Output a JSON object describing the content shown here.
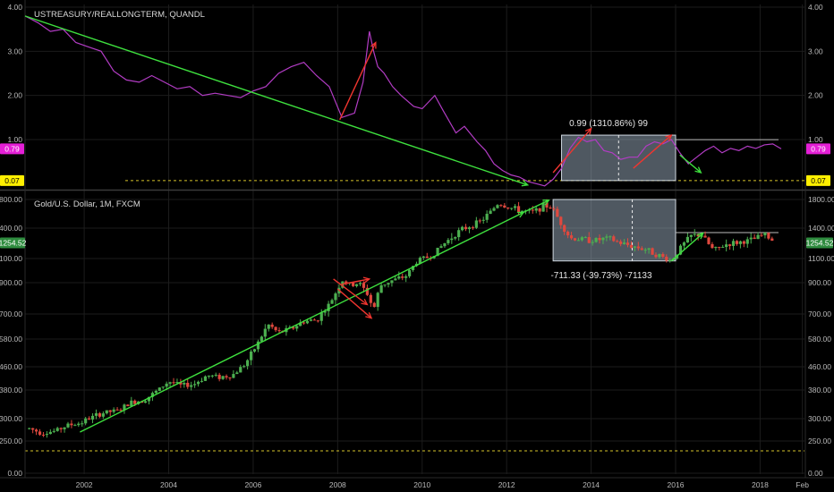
{
  "colors": {
    "background": "#000000",
    "grid": "#1c1c1c",
    "axis_text": "#b8b8b8",
    "treasury_line": "#b23cc4",
    "candle_up": "#4caf50",
    "candle_down": "#e0483e",
    "trend_green": "#3ee03e",
    "trend_red": "#f0352f",
    "dashed_yellow": "#d6c42a",
    "range_box": "#b0c4d8",
    "badge_magenta": "#e41fd6",
    "badge_yellow": "#ffef00",
    "badge_green": "#2e8b3e"
  },
  "chart_data": [
    {
      "type": "line",
      "title": "USTREASURY/REALLONGTERM, QUANDL",
      "ylim": [
        -0.05,
        4.15
      ],
      "y_ticks": [
        "4.00",
        "3.00",
        "2.00",
        "1.00"
      ],
      "last_value_badge": "0.79",
      "hline_badge": "0.07",
      "hline_value": 0.07,
      "xlim": [
        2000.6,
        2019.05
      ],
      "series": [
        {
          "x": [
            2000.6,
            2000.9,
            2001.2,
            2001.5,
            2001.8,
            2002.1,
            2002.4,
            2002.7,
            2003.0,
            2003.3,
            2003.6,
            2003.9,
            2004.2,
            2004.5,
            2004.8,
            2005.1,
            2005.4,
            2005.7,
            2006.0,
            2006.3,
            2006.6,
            2006.9,
            2007.2,
            2007.5,
            2007.8,
            2008.1,
            2008.4,
            2008.6,
            2008.75,
            2008.85,
            2008.95,
            2009.1,
            2009.3,
            2009.5,
            2009.8,
            2010.0,
            2010.3,
            2010.5,
            2010.8,
            2011.0,
            2011.3,
            2011.5,
            2011.7,
            2011.9,
            2012.1,
            2012.3,
            2012.5,
            2012.7,
            2012.9,
            2013.1,
            2013.3,
            2013.5,
            2013.7,
            2013.9,
            2014.1,
            2014.3,
            2014.5,
            2014.7,
            2014.9,
            2015.1,
            2015.3,
            2015.5,
            2015.7,
            2015.9,
            2016.1,
            2016.3,
            2016.5,
            2016.7,
            2016.9,
            2017.1,
            2017.3,
            2017.5,
            2017.7,
            2017.9,
            2018.1,
            2018.3,
            2018.5
          ],
          "values": [
            3.8,
            3.65,
            3.45,
            3.5,
            3.2,
            3.1,
            3.0,
            2.55,
            2.35,
            2.3,
            2.45,
            2.3,
            2.15,
            2.2,
            2.0,
            2.05,
            2.0,
            1.95,
            2.1,
            2.2,
            2.5,
            2.65,
            2.75,
            2.45,
            2.2,
            1.5,
            1.6,
            2.3,
            3.45,
            3.0,
            2.65,
            2.5,
            2.2,
            2.0,
            1.75,
            1.7,
            2.0,
            1.65,
            1.15,
            1.3,
            0.95,
            0.75,
            0.45,
            0.3,
            0.2,
            0.15,
            0.05,
            0.0,
            -0.05,
            0.1,
            0.35,
            0.8,
            1.05,
            0.95,
            1.0,
            0.75,
            0.7,
            0.55,
            0.6,
            0.6,
            0.85,
            0.95,
            0.9,
            1.0,
            0.7,
            0.45,
            0.6,
            0.75,
            0.85,
            0.7,
            0.8,
            0.75,
            0.85,
            0.8,
            0.88,
            0.9,
            0.79
          ]
        }
      ],
      "trendlines": [
        {
          "color": "green",
          "from": [
            2000.6,
            3.8
          ],
          "to": [
            2012.5,
            -0.03
          ]
        },
        {
          "color": "red",
          "from": [
            2008.05,
            1.45
          ],
          "to": [
            2008.9,
            3.2
          ]
        },
        {
          "color": "red",
          "from": [
            2013.1,
            0.25
          ],
          "to": [
            2014.0,
            1.25
          ]
        },
        {
          "color": "red",
          "from": [
            2015.0,
            0.35
          ],
          "to": [
            2015.9,
            1.1
          ]
        },
        {
          "color": "green",
          "from": [
            2016.1,
            0.65
          ],
          "to": [
            2016.6,
            0.25
          ]
        }
      ],
      "measure_box": {
        "x": [
          2013.3,
          2016.0
        ],
        "y": [
          0.07,
          1.1
        ],
        "label": "0.99 (1310.86%) 99"
      }
    },
    {
      "type": "candlestick",
      "title": "Gold/U.S. Dollar, 1M, FXCM",
      "scale": "log",
      "ylim": [
        0,
        1930
      ],
      "y_ticks": [
        "1800.00",
        "1400.00",
        "1100.00",
        "900.00",
        "700.00",
        "580.00",
        "460.00",
        "380.00",
        "300.00",
        "250.00",
        "0.00"
      ],
      "last_value_badge": "1254.52",
      "hline_value": 200,
      "x_ticks": [
        "2002",
        "2004",
        "2006",
        "2008",
        "2010",
        "2012",
        "2014",
        "2016",
        "2018",
        "Feb"
      ],
      "xlim": [
        2000.6,
        2019.05
      ],
      "series": [
        {
          "name": "Gold/U.S. Dollar",
          "x": [
            2000.7,
            2001.0,
            2001.3,
            2001.6,
            2001.9,
            2002.2,
            2002.5,
            2002.8,
            2003.1,
            2003.4,
            2003.7,
            2004.0,
            2004.3,
            2004.6,
            2004.9,
            2005.2,
            2005.5,
            2005.8,
            2006.1,
            2006.35,
            2006.6,
            2006.9,
            2007.2,
            2007.5,
            2007.8,
            2008.1,
            2008.3,
            2008.5,
            2008.7,
            2008.85,
            2009.0,
            2009.3,
            2009.6,
            2009.9,
            2010.2,
            2010.5,
            2010.8,
            2011.1,
            2011.4,
            2011.6,
            2011.8,
            2012.0,
            2012.3,
            2012.6,
            2012.9,
            2013.1,
            2013.3,
            2013.5,
            2013.8,
            2014.1,
            2014.4,
            2014.7,
            2015.0,
            2015.3,
            2015.6,
            2015.9,
            2016.1,
            2016.35,
            2016.6,
            2016.9,
            2017.2,
            2017.5,
            2017.8,
            2018.1,
            2018.35
          ],
          "values": [
            278,
            268,
            272,
            285,
            290,
            305,
            318,
            322,
            345,
            352,
            375,
            410,
            395,
            400,
            430,
            425,
            430,
            470,
            560,
            650,
            610,
            630,
            665,
            670,
            760,
            920,
            880,
            900,
            830,
            730,
            880,
            920,
            950,
            1090,
            1120,
            1240,
            1350,
            1420,
            1500,
            1620,
            1750,
            1700,
            1650,
            1620,
            1720,
            1670,
            1450,
            1300,
            1290,
            1280,
            1300,
            1250,
            1220,
            1190,
            1130,
            1080,
            1200,
            1320,
            1340,
            1180,
            1240,
            1260,
            1280,
            1340,
            1260
          ]
        }
      ],
      "trendlines": [
        {
          "color": "green",
          "from": [
            2001.9,
            270
          ],
          "to": [
            2012.4,
            1620
          ]
        },
        {
          "color": "red",
          "from": [
            2007.9,
            930
          ],
          "to": [
            2008.7,
            760
          ]
        },
        {
          "color": "red",
          "from": [
            2008.0,
            860
          ],
          "to": [
            2008.8,
            680
          ]
        },
        {
          "color": "red",
          "from": [
            2008.1,
            890
          ],
          "to": [
            2008.75,
            930
          ]
        },
        {
          "color": "green",
          "from": [
            2012.4,
            1620
          ],
          "to": [
            2013.0,
            1790
          ]
        },
        {
          "color": "green",
          "from": [
            2015.9,
            1080
          ],
          "to": [
            2016.65,
            1350
          ]
        }
      ],
      "measure_box": {
        "x": [
          2013.1,
          2016.0
        ],
        "y": [
          1080,
          1800
        ],
        "label": "-711.33 (-39.73%) -71133"
      }
    }
  ]
}
